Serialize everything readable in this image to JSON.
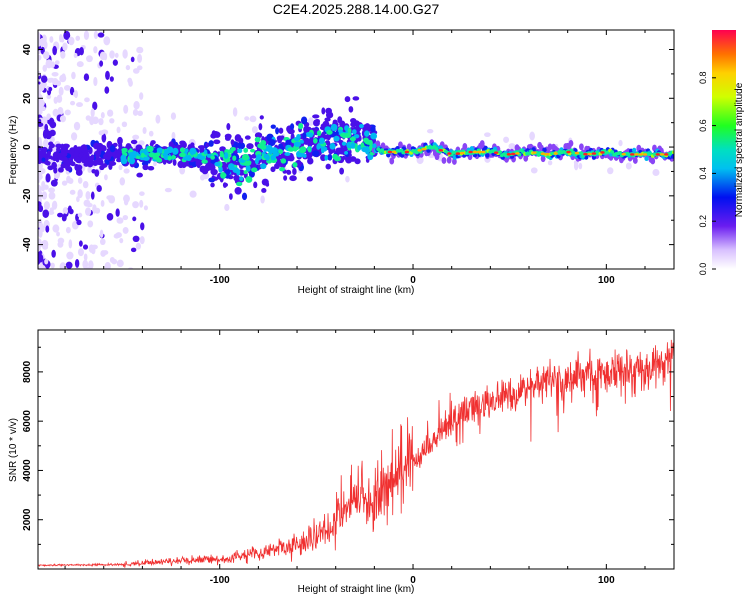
{
  "title": "C2E4.2025.288.14.00.G27",
  "chart_data": [
    {
      "type": "heatmap",
      "name": "spectrogram",
      "xlabel": "Height of straight line (km)",
      "ylabel": "Frequency (Hz)",
      "xlim": [
        -194,
        135
      ],
      "ylim": [
        -50,
        48
      ],
      "xticks": [
        -100,
        0,
        100
      ],
      "yticks": [
        -40,
        -20,
        0,
        20,
        40
      ],
      "band_center_hz": [
        [
          -190,
          -4
        ],
        [
          -160,
          -4
        ],
        [
          -140,
          -3
        ],
        [
          -120,
          -3
        ],
        [
          -105,
          -4
        ],
        [
          -95,
          -7
        ],
        [
          -85,
          -6
        ],
        [
          -75,
          -2
        ],
        [
          -60,
          0
        ],
        [
          -45,
          2
        ],
        [
          -30,
          4
        ],
        [
          -22,
          1
        ],
        [
          -15,
          -2
        ],
        [
          0,
          -2
        ],
        [
          10,
          0
        ],
        [
          20,
          -3
        ],
        [
          30,
          -2
        ],
        [
          40,
          -2
        ],
        [
          50,
          -3
        ],
        [
          60,
          -2
        ],
        [
          70,
          -3
        ],
        [
          80,
          -2
        ],
        [
          90,
          -3
        ],
        [
          100,
          -2
        ],
        [
          110,
          -3
        ],
        [
          120,
          -3
        ],
        [
          135,
          -3
        ]
      ],
      "colorbar": {
        "label": "Normalized spectral amplitude",
        "range": [
          0,
          1
        ],
        "ticks": [
          0.0,
          0.2,
          0.4,
          0.6,
          0.8
        ],
        "tick_labels": [
          "0.0",
          "0.2",
          "0.4",
          "0.6",
          "0.8"
        ]
      }
    },
    {
      "type": "line",
      "name": "snr",
      "xlabel": "Height of straight line (km)",
      "ylabel": "SNR (10 * v/v)",
      "xlim": [
        -194,
        135
      ],
      "ylim": [
        0,
        9700
      ],
      "xticks": [
        -100,
        0,
        100
      ],
      "yticks": [
        2000,
        4000,
        6000,
        8000
      ],
      "color": "#f03030",
      "trend": {
        "x": [
          -194,
          -150,
          -130,
          -100,
          -80,
          -60,
          -45,
          -35,
          -28,
          -20,
          -10,
          0,
          10,
          20,
          30,
          40,
          60,
          80,
          100,
          120,
          135
        ],
        "y": [
          150,
          180,
          300,
          400,
          600,
          1000,
          1600,
          2400,
          2900,
          2800,
          3300,
          4300,
          5200,
          6000,
          6500,
          6900,
          7400,
          7800,
          8000,
          8200,
          8400
        ]
      }
    }
  ]
}
